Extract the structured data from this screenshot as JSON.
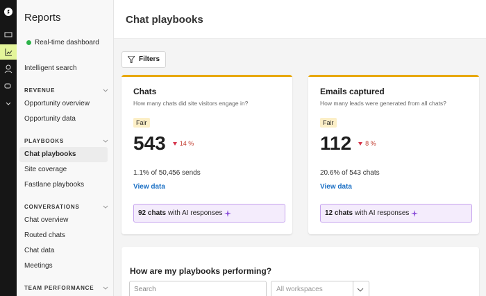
{
  "sidebar": {
    "title": "Reports",
    "realtime": "Real-time dashboard",
    "search": "Intelligent search",
    "sections": [
      {
        "heading": "REVENUE",
        "items": [
          "Opportunity overview",
          "Opportunity data"
        ]
      },
      {
        "heading": "PLAYBOOKS",
        "items": [
          "Chat playbooks",
          "Site coverage",
          "Fastlane playbooks"
        ]
      },
      {
        "heading": "CONVERSATIONS",
        "items": [
          "Chat overview",
          "Routed chats",
          "Chat data",
          "Meetings"
        ]
      },
      {
        "heading": "TEAM PERFORMANCE",
        "items": []
      }
    ]
  },
  "header": {
    "title": "Chat playbooks"
  },
  "toolbar": {
    "filters": "Filters"
  },
  "cards": [
    {
      "title": "Chats",
      "subtitle": "How many chats did site visitors engage in?",
      "badge": "Fair",
      "value": 543,
      "change": "14 %",
      "detail": "1.1% of 50,456 sends",
      "link": "View data",
      "ai_count": "92 chats",
      "ai_text": "with AI responses"
    },
    {
      "title": "Emails captured",
      "subtitle": "How many leads were generated from all chats?",
      "badge": "Fair",
      "value": 112,
      "change": "8 %",
      "detail": "20.6% of 543 chats",
      "link": "View data",
      "ai_count": "12 chats",
      "ai_text": "with AI responses"
    }
  ],
  "performance": {
    "title": "How are my playbooks performing?",
    "search_placeholder": "Search",
    "workspace": "All workspaces"
  }
}
